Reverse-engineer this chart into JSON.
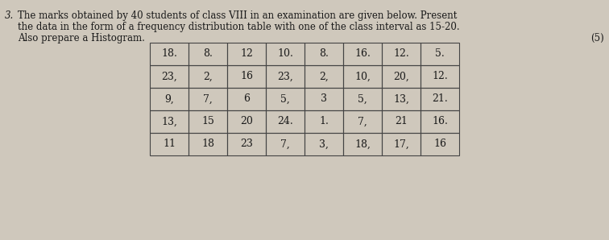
{
  "text_line1": "The marks obtained by 40 students of class VIII in an examination are given below. Present",
  "text_line2": "the data in the form of a frequency distribution table with one of the class interval as 15-20.",
  "text_line3": "Also prepare a Histogram.",
  "marks_label": "(5)",
  "prefix": "3.",
  "table_data": [
    [
      "18.",
      "8.",
      "12",
      "10.",
      "8.",
      "16.",
      "12.",
      "5."
    ],
    [
      "23,",
      "2,",
      "16",
      "23,",
      "2,",
      "10,",
      "20,",
      "12."
    ],
    [
      "9,",
      "7,",
      "6",
      "5,",
      "3",
      "5,",
      "13,",
      "21."
    ],
    [
      "13,",
      "15",
      "20",
      "24.",
      "1.",
      "7,",
      "21",
      "16."
    ],
    [
      "11",
      "18",
      "23",
      "7,",
      "3,",
      "18,",
      "17,",
      "16"
    ]
  ],
  "bg_color": "#cfc8bc",
  "text_color": "#1a1a1a",
  "table_line_color": "#444444",
  "font_size_text": 8.5,
  "font_size_table": 9.0,
  "figsize": [
    7.56,
    2.98
  ],
  "dpi": 100
}
